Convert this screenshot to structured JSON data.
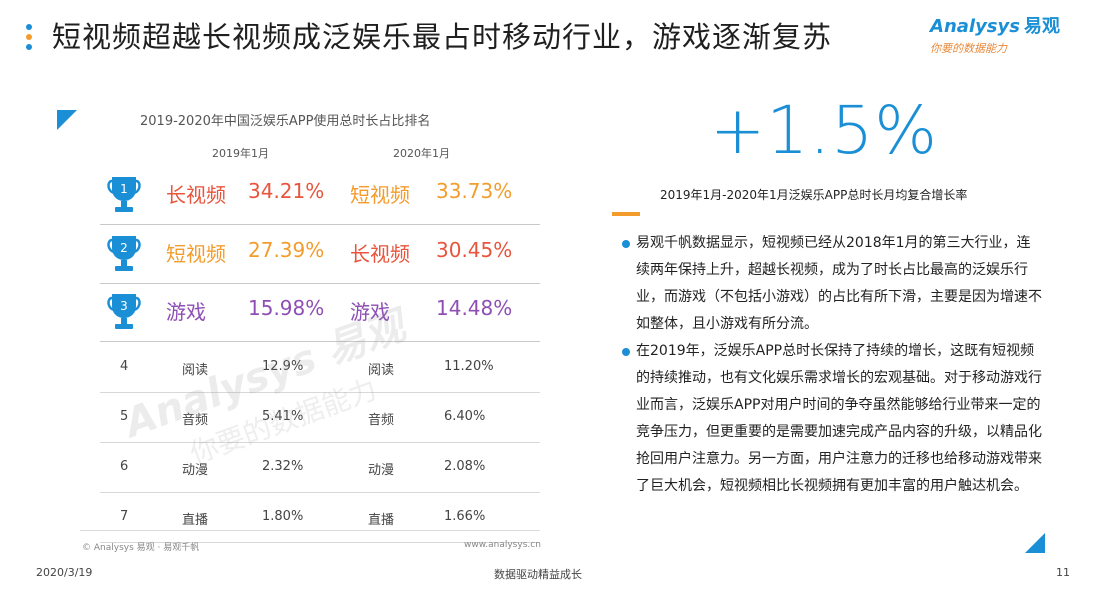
{
  "header": {
    "title": "短视频超越长视频成泛娱乐最占时移动行业，游戏逐渐复苏",
    "dot_colors": [
      "#1a8fd6",
      "#f39c2c",
      "#1a8fd6"
    ]
  },
  "logo": {
    "main": "nalysys",
    "mark": "A",
    "cn": "易观",
    "sub": "你要的数据能力"
  },
  "chart": {
    "title": "2019-2020年中国泛娱乐APP使用总时长占比排名",
    "col_2019": "2019年1月",
    "col_2020": "2020年1月",
    "top_rows": [
      {
        "rank": "1",
        "cat_2019": "长视频",
        "val_2019": "34.21%",
        "color_2019": "#e8543c",
        "cat_2020": "短视频",
        "val_2020": "33.73%",
        "color_2020": "#f39c2c"
      },
      {
        "rank": "2",
        "cat_2019": "短视频",
        "val_2019": "27.39%",
        "color_2019": "#f39c2c",
        "cat_2020": "长视频",
        "val_2020": "30.45%",
        "color_2020": "#e8543c"
      },
      {
        "rank": "3",
        "cat_2019": "游戏",
        "val_2019": "15.98%",
        "color_2019": "#8e4fb5",
        "cat_2020": "游戏",
        "val_2020": "14.48%",
        "color_2020": "#8e4fb5"
      }
    ],
    "rows": [
      {
        "rank": "4",
        "cat_2019": "阅读",
        "val_2019": "12.9%",
        "cat_2020": "阅读",
        "val_2020": "11.20%"
      },
      {
        "rank": "5",
        "cat_2019": "音频",
        "val_2019": "5.41%",
        "cat_2020": "音频",
        "val_2020": "6.40%"
      },
      {
        "rank": "6",
        "cat_2019": "动漫",
        "val_2019": "2.32%",
        "cat_2020": "动漫",
        "val_2020": "2.08%"
      },
      {
        "rank": "7",
        "cat_2019": "直播",
        "val_2019": "1.80%",
        "cat_2020": "直播",
        "val_2020": "1.66%"
      }
    ],
    "trophy_color": "#1a8fd6",
    "watermark": "Analysys 易观",
    "watermark_sub": "你要的数据能力",
    "source_left": "© Analysys 易观 · 易观千帆",
    "source_right": "www.analysys.cn"
  },
  "highlight": {
    "value": "+1.5%",
    "caption": "2019年1月-2020年1月泛娱乐APP总时长月均复合增长率"
  },
  "bullets": [
    "易观千帆数据显示，短视频已经从2018年1月的第三大行业，连续两年保持上升，超越长视频，成为了时长占比最高的泛娱乐行业，而游戏（不包括小游戏）的占比有所下滑，主要是因为增速不如整体，且小游戏有所分流。",
    "在2019年，泛娱乐APP总时长保持了持续的增长，这既有短视频的持续推动，也有文化娱乐需求增长的宏观基础。对于移动游戏行业而言，泛娱乐APP对用户时间的争夺虽然能够给行业带来一定的竞争压力，但更重要的是需要加速完成产品内容的升级，以精品化抢回用户注意力。另一方面，用户注意力的迁移也给移动游戏带来了巨大机会，短视频相比长视频拥有更加丰富的用户触达机会。"
  ],
  "footer": {
    "date": "2020/3/19",
    "slogan": "数据驱动精益成长",
    "page": "11"
  }
}
